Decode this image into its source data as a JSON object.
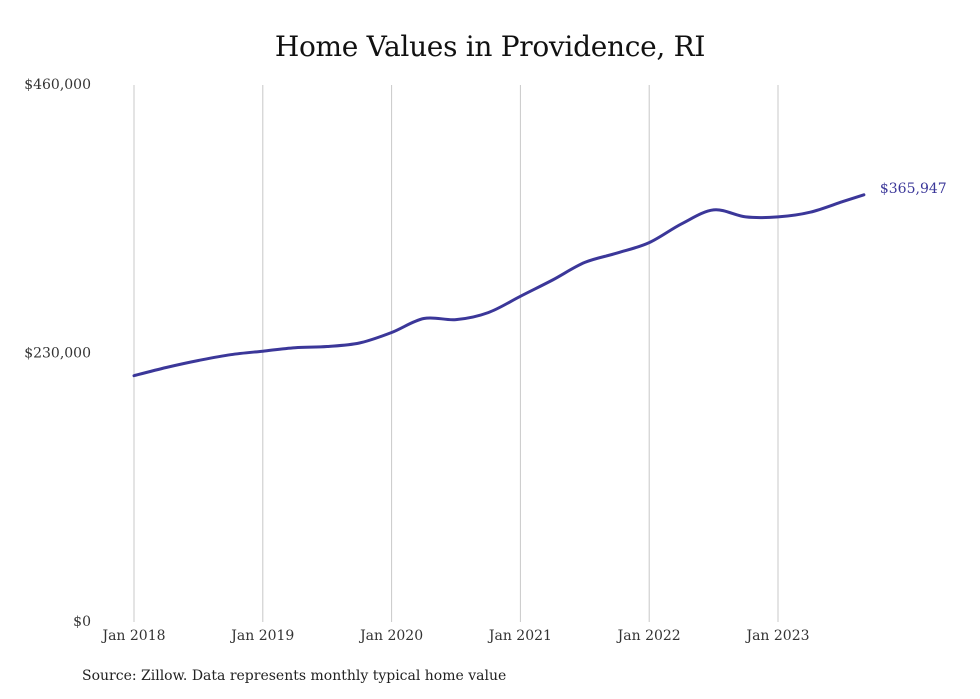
{
  "chart_data": {
    "type": "line",
    "title": "Home Values in Providence, RI",
    "xlabel": "",
    "ylabel": "",
    "ylim": [
      0,
      460000
    ],
    "y_ticks": [
      {
        "value": 0,
        "label": "$0"
      },
      {
        "value": 230000,
        "label": "$230,000"
      },
      {
        "value": 460000,
        "label": "$460,000"
      }
    ],
    "x_ticks": [
      {
        "value": "2018-01",
        "label": "Jan 2018"
      },
      {
        "value": "2019-01",
        "label": "Jan 2019"
      },
      {
        "value": "2020-01",
        "label": "Jan 2020"
      },
      {
        "value": "2021-01",
        "label": "Jan 2021"
      },
      {
        "value": "2022-01",
        "label": "Jan 2022"
      },
      {
        "value": "2023-01",
        "label": "Jan 2023"
      }
    ],
    "grid": "vertical",
    "line_color": "#3b3799",
    "series": [
      {
        "x": [
          "2018-01",
          "2018-04",
          "2018-07",
          "2018-10",
          "2019-01",
          "2019-04",
          "2019-07",
          "2019-10",
          "2020-01",
          "2020-04",
          "2020-07",
          "2020-10",
          "2021-01",
          "2021-04",
          "2021-07",
          "2021-10",
          "2022-01",
          "2022-04",
          "2022-07",
          "2022-10",
          "2023-01",
          "2023-04",
          "2023-07",
          "2023-09"
        ],
        "values": [
          211000,
          218000,
          224000,
          229000,
          232000,
          235000,
          236000,
          239000,
          248000,
          260000,
          259000,
          265000,
          279000,
          293000,
          308000,
          316000,
          325000,
          341000,
          353000,
          347000,
          347000,
          351000,
          360000,
          365947
        ],
        "end_label": "$365,947"
      }
    ],
    "source": "Source: Zillow. Data represents monthly typical home value"
  }
}
